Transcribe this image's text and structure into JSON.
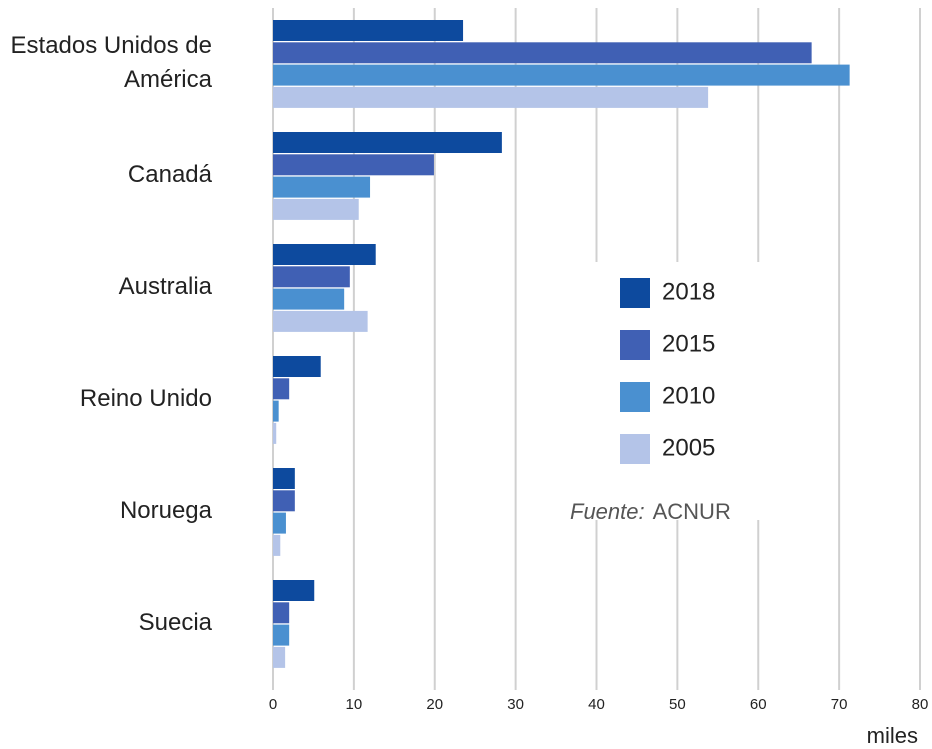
{
  "chart_data": {
    "type": "barh",
    "categories": [
      "Estados Unidos de América",
      "Canadá",
      "Australia",
      "Reino Unido",
      "Noruega",
      "Suecia"
    ],
    "series": [
      {
        "name": "2018",
        "color": "#0d4a9e",
        "values": [
          23.5,
          28.3,
          12.7,
          5.9,
          2.7,
          5.1
        ]
      },
      {
        "name": "2015",
        "color": "#4060b4",
        "values": [
          66.6,
          19.9,
          9.5,
          2.0,
          2.7,
          2.0
        ]
      },
      {
        "name": "2010",
        "color": "#4a90d0",
        "values": [
          71.3,
          12.0,
          8.8,
          0.7,
          1.6,
          2.0
        ]
      },
      {
        "name": "2005",
        "color": "#b4c4e8",
        "values": [
          53.8,
          10.6,
          11.7,
          0.4,
          0.9,
          1.5
        ]
      }
    ],
    "xlim": [
      0,
      80
    ],
    "xticks": [
      0,
      10,
      20,
      30,
      40,
      50,
      60,
      70,
      80
    ],
    "xlabel": "miles",
    "grid": true,
    "source_label": "Fuente:",
    "source": "ACNUR"
  }
}
